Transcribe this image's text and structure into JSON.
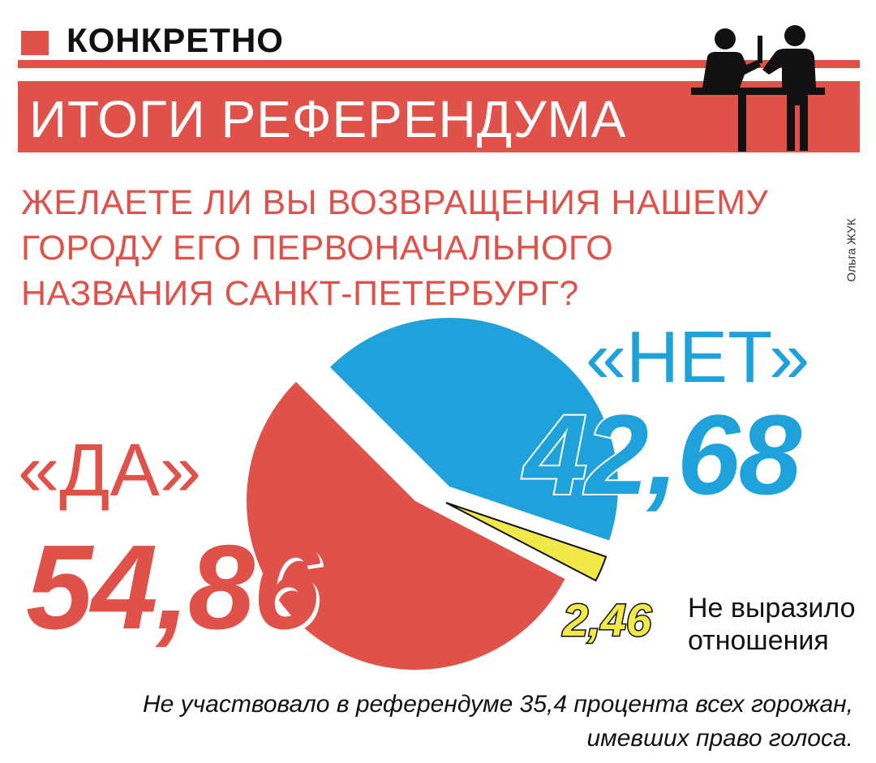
{
  "rubric": "КОНКРЕТНО",
  "title": "ИТОГИ РЕФЕРЕНДУМА",
  "question": "ЖЕЛАЕТЕ ЛИ ВЫ ВОЗВРАЩЕНИЯ НАШЕМУ\nГОРОДУ ЕГО ПЕРВОНАЧАЛЬНОГО\nНАЗВАНИЯ САНКТ-ПЕТЕРБУРГ?",
  "credit": "Ольга ЖУК",
  "icon": "voting-people-icon",
  "chart_data": {
    "type": "pie",
    "title": "ИТОГИ РЕФЕРЕНДУМА",
    "slices": [
      {
        "label": "«ДА»",
        "value": 54.86,
        "value_text": "54,86",
        "color": "#e0514a"
      },
      {
        "label": "«НЕТ»",
        "value": 42.68,
        "value_text": "42,68",
        "color": "#1fa2dc"
      },
      {
        "label": "Не выразило\nотношения",
        "value": 2.46,
        "value_text": "2,46",
        "color": "#f1e94a"
      }
    ]
  },
  "footnote": "Не участвовало в референдуме 35,4 процента всех горожан,\nимевших право голоса.",
  "colors": {
    "accent": "#e0514a",
    "no": "#1fa2dc",
    "other": "#f1e94a"
  }
}
